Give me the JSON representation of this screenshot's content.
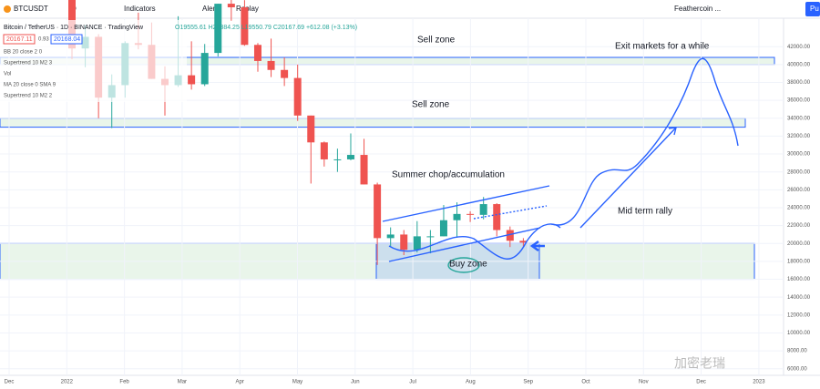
{
  "toolbar": {
    "symbol": "BTCUSDT",
    "interval": "D",
    "indicators": "Indicators",
    "alert": "Alert",
    "replay": "Replay",
    "layout": "Feathercoin ...",
    "publish": "Pu"
  },
  "legend": {
    "title": "Bitcoin / TetherUS · 1D · BINANCE · TradingView",
    "ohlc": "O19555.61 H20384.25 L19550.79 C20167.69 +612.08 (+3.13%)",
    "bid": "20167.11",
    "spread": "0.93",
    "ask": "20168.04",
    "studies": [
      "BB 20 close 2 0",
      "Supertrend 10 M2 3",
      "Vol",
      "MA 20 close 0 SMA 9",
      "Supertrend 10 M2 2"
    ]
  },
  "watermark": "加密老瑞",
  "chart_data": {
    "type": "candlestick",
    "up_color": "#26a69a",
    "down_color": "#ef5350",
    "categories": [
      null,
      null,
      null,
      null,
      null,
      null,
      null,
      null,
      null,
      null,
      null,
      null,
      null,
      null,
      null,
      null,
      null,
      null,
      null,
      null,
      null,
      null,
      null,
      null,
      null,
      null,
      null,
      null,
      null,
      null,
      null,
      null,
      null,
      null,
      null
    ],
    "open": [
      47300,
      41800,
      43100,
      36300,
      37700,
      42400,
      42200,
      38400,
      37700,
      38800,
      37800,
      41300,
      46800,
      46400,
      42200,
      40400,
      39400,
      38500,
      34300,
      31300,
      29400,
      29400,
      29900,
      26600,
      20600,
      21000,
      19300,
      20800,
      20800,
      22600,
      23300,
      23200,
      24400,
      21500,
      20300
    ],
    "high": [
      47500,
      44400,
      43400,
      38900,
      42600,
      45800,
      44700,
      39800,
      45400,
      42600,
      42300,
      46800,
      48200,
      47200,
      42400,
      42900,
      40800,
      40000,
      34300,
      31400,
      30600,
      32300,
      31700,
      26800,
      21800,
      21500,
      22500,
      21500,
      24300,
      24600,
      23600,
      25200,
      24500,
      21900,
      20600
    ],
    "low": [
      40600,
      39700,
      34000,
      32900,
      36300,
      41700,
      38400,
      34300,
      37500,
      37200,
      37600,
      40900,
      44900,
      42100,
      39200,
      38600,
      37600,
      33700,
      26700,
      28600,
      28000,
      29300,
      26600,
      17600,
      19600,
      18700,
      19000,
      18900,
      20800,
      20700,
      22400,
      22700,
      20800,
      19600,
      19600
    ],
    "close": [
      41800,
      43100,
      36300,
      37700,
      42400,
      42200,
      38400,
      37700,
      38800,
      37800,
      41300,
      46800,
      46400,
      42200,
      40400,
      39400,
      38500,
      34300,
      31300,
      29400,
      29400,
      29900,
      26600,
      20600,
      21000,
      19300,
      20800,
      20800,
      22600,
      23300,
      23200,
      24400,
      21500,
      20300,
      20100
    ],
    "xtick_labels": [
      "Dec",
      "2022",
      "Feb",
      "Mar",
      "Apr",
      "May",
      "Jun",
      "Jul",
      "Aug",
      "Sep",
      "Oct",
      "Nov",
      "Dec",
      "2023"
    ],
    "ylim": [
      5260,
      45180
    ],
    "yticks": [
      {
        "value": 42000,
        "label": "42000.00"
      },
      {
        "value": 40000,
        "label": "40000.00"
      },
      {
        "value": 38000,
        "label": "38000.00"
      },
      {
        "value": 36000,
        "label": "36000.00"
      },
      {
        "value": 34000,
        "label": "34000.00"
      },
      {
        "value": 32000,
        "label": "32000.00"
      },
      {
        "value": 30000,
        "label": "30000.00"
      },
      {
        "value": 28000,
        "label": "28000.00"
      },
      {
        "value": 26000,
        "label": "26000.00"
      },
      {
        "value": 24000,
        "label": "24000.00"
      },
      {
        "value": 22000,
        "label": "22000.00"
      },
      {
        "value": 20000,
        "label": "20000.00"
      },
      {
        "value": 18000,
        "label": "18000.00"
      },
      {
        "value": 16000,
        "label": "16000.00"
      },
      {
        "value": 14000,
        "label": "14000.00"
      },
      {
        "value": 12000,
        "label": "12000.00"
      },
      {
        "value": 10000,
        "label": "10000.00"
      },
      {
        "value": 8000,
        "label": "8000.00"
      },
      {
        "value": 6000,
        "label": "6000.00"
      }
    ],
    "zones": [
      {
        "label": "Sell zone",
        "range": [
          40000,
          40800
        ]
      },
      {
        "label": "Sell zone",
        "range": [
          33000,
          34000
        ]
      },
      {
        "label": "Buy zone",
        "range": [
          16000,
          20000
        ]
      }
    ],
    "annotations": [
      "Exit markets for a while",
      "Summer chop/accumulation",
      "Mid term rally"
    ]
  }
}
